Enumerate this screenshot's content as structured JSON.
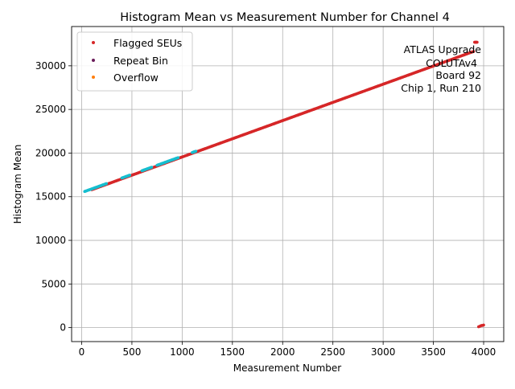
{
  "chart_data": {
    "type": "scatter",
    "title": "Histogram Mean vs Measurement Number for Channel 4",
    "xlabel": "Measurement Number",
    "ylabel": "Histogram Mean",
    "xlim": [
      -100,
      4200
    ],
    "ylim": [
      -1600,
      34500
    ],
    "xticks": [
      0,
      500,
      1000,
      1500,
      2000,
      2500,
      3000,
      3500,
      4000
    ],
    "yticks": [
      0,
      5000,
      10000,
      15000,
      20000,
      25000,
      30000
    ],
    "grid": true,
    "legend_position": "top-left",
    "annotation_lines": [
      "ATLAS Upgrade",
      "COLUTAv4",
      "Board 92",
      "Chip 1, Run 210"
    ],
    "series": [
      {
        "name": "Flagged SEUs",
        "color": "#d62728",
        "role": "main-trend",
        "x_range": [
          100,
          3900
        ],
        "y_start": 15800,
        "slope": 4.17,
        "extra_points": [
          {
            "x": 3910,
            "y": 32700
          },
          {
            "x": 3915,
            "y": 32700
          },
          {
            "x": 3920,
            "y": 32700
          },
          {
            "x": 3925,
            "y": 32700
          },
          {
            "x": 3930,
            "y": 32700
          },
          {
            "x": 3935,
            "y": 32700
          },
          {
            "x": 3950,
            "y": 100
          },
          {
            "x": 3960,
            "y": 150
          },
          {
            "x": 3970,
            "y": 200
          },
          {
            "x": 3980,
            "y": 250
          },
          {
            "x": 3990,
            "y": 250
          },
          {
            "x": 4000,
            "y": 300
          }
        ]
      },
      {
        "name": "Repeat Bin",
        "color": "#6a1b5a",
        "points": []
      },
      {
        "name": "Overflow",
        "color": "#ff7f0e",
        "points": []
      },
      {
        "name": "",
        "color": "#17becf",
        "role": "cyan-segments",
        "segments": [
          [
            30,
            250
          ],
          [
            400,
            480
          ],
          [
            600,
            700
          ],
          [
            750,
            960
          ],
          [
            1100,
            1140
          ]
        ],
        "y_start": 15600,
        "slope": 4.17
      }
    ]
  }
}
